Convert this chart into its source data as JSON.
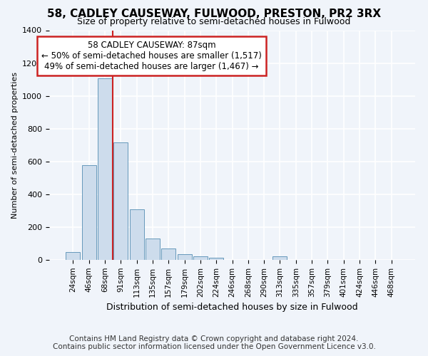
{
  "title": "58, CADLEY CAUSEWAY, FULWOOD, PRESTON, PR2 3RX",
  "subtitle": "Size of property relative to semi-detached houses in Fulwood",
  "xlabel": "Distribution of semi-detached houses by size in Fulwood",
  "ylabel": "Number of semi-detached properties",
  "categories": [
    "24sqm",
    "46sqm",
    "68sqm",
    "91sqm",
    "113sqm",
    "135sqm",
    "157sqm",
    "179sqm",
    "202sqm",
    "224sqm",
    "246sqm",
    "268sqm",
    "290sqm",
    "313sqm",
    "335sqm",
    "357sqm",
    "379sqm",
    "401sqm",
    "424sqm",
    "446sqm",
    "468sqm"
  ],
  "values": [
    48,
    578,
    1105,
    715,
    308,
    132,
    68,
    35,
    20,
    15,
    0,
    0,
    0,
    20,
    0,
    0,
    0,
    0,
    0,
    0,
    0
  ],
  "bar_color": "#cddcec",
  "bar_edge_color": "#6699bb",
  "vline_color": "#cc2222",
  "annotation_text": "58 CADLEY CAUSEWAY: 87sqm\n← 50% of semi-detached houses are smaller (1,517)\n49% of semi-detached houses are larger (1,467) →",
  "annotation_box_color": "#ffffff",
  "annotation_box_edge_color": "#cc2222",
  "ylim": [
    0,
    1400
  ],
  "yticks": [
    0,
    200,
    400,
    600,
    800,
    1000,
    1200,
    1400
  ],
  "bg_color": "#f0f4fa",
  "plot_bg_color": "#f0f4fa",
  "grid_color": "#ffffff",
  "footer_line1": "Contains HM Land Registry data © Crown copyright and database right 2024.",
  "footer_line2": "Contains public sector information licensed under the Open Government Licence v3.0.",
  "title_fontsize": 11,
  "subtitle_fontsize": 9,
  "xlabel_fontsize": 9,
  "ylabel_fontsize": 8,
  "annotation_fontsize": 8.5,
  "footer_fontsize": 7.5
}
